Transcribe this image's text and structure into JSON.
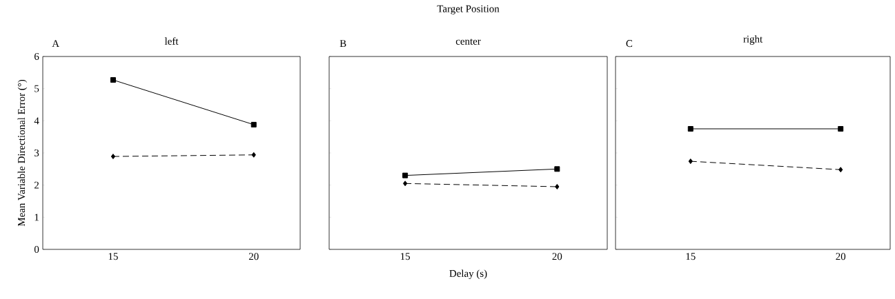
{
  "chart_data": [
    {
      "type": "line",
      "title": "left",
      "ylabel": "Mean Variable Directional Error (°)",
      "annotations": [
        "A"
      ],
      "categories": [
        "15",
        "20"
      ],
      "ylim": [
        0,
        6
      ],
      "yticks": [
        0,
        1,
        2,
        3,
        4,
        5,
        6
      ],
      "grid": false,
      "series": [
        {
          "color": "#000000",
          "marker": "square",
          "line_style": "solid",
          "values": [
            5.27,
            3.88
          ]
        },
        {
          "color": "#000000",
          "marker": "diamond",
          "line_style": "dashed",
          "values": [
            2.89,
            2.94
          ]
        }
      ]
    },
    {
      "type": "line",
      "title": "center",
      "xlabel": "Delay (s)",
      "annotations": [
        "B",
        "Target Position"
      ],
      "categories": [
        "15",
        "20"
      ],
      "ylim": [
        0,
        6
      ],
      "yticks": [
        0,
        1,
        2,
        3,
        4,
        5,
        6
      ],
      "tick_labels": "x",
      "grid": false,
      "series": [
        {
          "color": "#000000",
          "marker": "square",
          "line_style": "solid",
          "values": [
            2.3,
            2.5
          ]
        },
        {
          "color": "#000000",
          "marker": "diamond",
          "line_style": "dashed",
          "values": [
            2.05,
            1.95
          ]
        }
      ]
    },
    {
      "type": "line",
      "title": "right",
      "annotations": [
        "C"
      ],
      "categories": [
        "15",
        "20"
      ],
      "ylim": [
        0,
        6
      ],
      "yticks": [
        0,
        1,
        2,
        3,
        4,
        5,
        6
      ],
      "tick_labels": "x",
      "grid": false,
      "series": [
        {
          "color": "#000000",
          "marker": "square",
          "line_style": "solid",
          "values": [
            3.75,
            3.75
          ]
        },
        {
          "color": "#000000",
          "marker": "diamond",
          "line_style": "dashed",
          "values": [
            2.74,
            2.48
          ]
        }
      ]
    }
  ]
}
